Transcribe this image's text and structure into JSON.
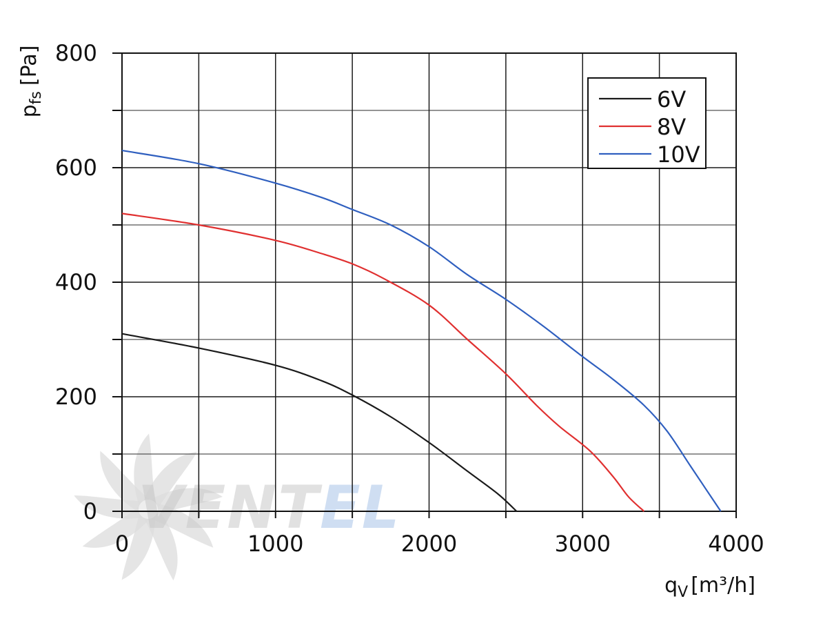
{
  "chart_data": {
    "type": "line",
    "title": "",
    "xlabel": {
      "main": "q",
      "sub": "V",
      "unit": "[m³/h]"
    },
    "ylabel": {
      "main": "p",
      "sub": "fs",
      "unit": "[Pa]"
    },
    "xlim": [
      0,
      4000
    ],
    "ylim": [
      0,
      800
    ],
    "x_ticks": [
      0,
      1000,
      2000,
      3000,
      4000
    ],
    "x_tick_labels": [
      "0",
      "1000",
      "2000",
      "3000",
      "4000"
    ],
    "y_ticks": [
      0,
      200,
      400,
      600,
      800
    ],
    "y_tick_labels": [
      "0",
      "200",
      "400",
      "600",
      "800"
    ],
    "x_minor_step": 500,
    "y_minor_step": 100,
    "grid": true,
    "legend_position": "top-right",
    "series": [
      {
        "name": "6V",
        "color": "#1a1a1a",
        "points": [
          [
            0,
            310
          ],
          [
            500,
            285
          ],
          [
            1000,
            255
          ],
          [
            1300,
            228
          ],
          [
            1500,
            203
          ],
          [
            1750,
            165
          ],
          [
            2000,
            120
          ],
          [
            2250,
            70
          ],
          [
            2450,
            30
          ],
          [
            2570,
            0
          ]
        ]
      },
      {
        "name": "8V",
        "color": "#e03030",
        "points": [
          [
            0,
            520
          ],
          [
            500,
            500
          ],
          [
            1000,
            473
          ],
          [
            1300,
            450
          ],
          [
            1500,
            432
          ],
          [
            1700,
            407
          ],
          [
            2000,
            360
          ],
          [
            2250,
            300
          ],
          [
            2500,
            240
          ],
          [
            2700,
            185
          ],
          [
            2850,
            148
          ],
          [
            3050,
            105
          ],
          [
            3200,
            60
          ],
          [
            3300,
            25
          ],
          [
            3400,
            0
          ]
        ]
      },
      {
        "name": "10V",
        "color": "#2f5fbf",
        "points": [
          [
            0,
            630
          ],
          [
            500,
            607
          ],
          [
            1000,
            573
          ],
          [
            1300,
            548
          ],
          [
            1500,
            527
          ],
          [
            1750,
            500
          ],
          [
            2000,
            462
          ],
          [
            2250,
            413
          ],
          [
            2500,
            370
          ],
          [
            2750,
            322
          ],
          [
            3000,
            270
          ],
          [
            3200,
            230
          ],
          [
            3400,
            185
          ],
          [
            3550,
            140
          ],
          [
            3700,
            80
          ],
          [
            3800,
            40
          ],
          [
            3900,
            0
          ]
        ]
      }
    ]
  },
  "watermark": {
    "text_dark": "VENT",
    "text_light": "EL",
    "fan_color": "#dcdcdc",
    "dark_color": "#c9c9c9",
    "light_color": "#a9c4e8"
  }
}
